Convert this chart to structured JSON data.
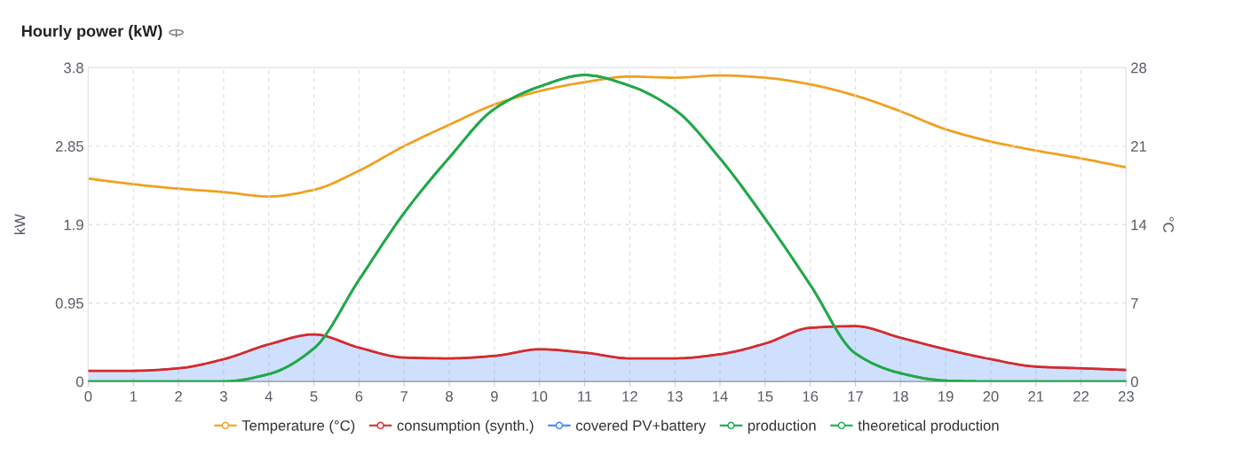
{
  "chart_data": {
    "type": "line",
    "title": "Hourly power (kW)",
    "ylabel": "kW",
    "y2label": "°C",
    "x": [
      0,
      1,
      2,
      3,
      4,
      5,
      6,
      7,
      8,
      9,
      10,
      11,
      12,
      13,
      14,
      15,
      16,
      17,
      18,
      19,
      20,
      21,
      22,
      23
    ],
    "xlim": [
      0,
      23
    ],
    "xticks": [
      0,
      1,
      2,
      3,
      4,
      5,
      6,
      7,
      8,
      9,
      10,
      11,
      12,
      13,
      14,
      15,
      16,
      17,
      18,
      19,
      20,
      21,
      22,
      23
    ],
    "ylim": [
      0,
      3.8
    ],
    "yticks": [
      0,
      0.95,
      1.9,
      2.85,
      3.8
    ],
    "y2lim": [
      0,
      28
    ],
    "y2ticks": [
      0,
      7,
      14,
      21,
      28
    ],
    "grid": true,
    "legend": "bottom",
    "series": [
      {
        "name": "Temperature (°C)",
        "color": "#f0a020",
        "axis": "y2",
        "values": [
          18.1,
          17.6,
          17.2,
          16.9,
          16.5,
          17.1,
          18.8,
          21.0,
          22.9,
          24.7,
          25.9,
          26.7,
          27.2,
          27.1,
          27.3,
          27.1,
          26.5,
          25.5,
          24.1,
          22.5,
          21.4,
          20.6,
          19.9,
          19.1
        ]
      },
      {
        "name": "consumption (synth.)",
        "color": "#d62b2b",
        "values": [
          0.13,
          0.13,
          0.16,
          0.27,
          0.45,
          0.57,
          0.41,
          0.29,
          0.28,
          0.31,
          0.39,
          0.35,
          0.28,
          0.28,
          0.33,
          0.46,
          0.65,
          0.67,
          0.53,
          0.39,
          0.27,
          0.18,
          0.16,
          0.14
        ]
      },
      {
        "name": "covered PV+battery",
        "color": "#3b82f6",
        "type": "area",
        "values": [
          0.13,
          0.13,
          0.16,
          0.27,
          0.45,
          0.57,
          0.41,
          0.29,
          0.28,
          0.31,
          0.39,
          0.35,
          0.28,
          0.28,
          0.33,
          0.46,
          0.65,
          0.67,
          0.53,
          0.39,
          0.27,
          0.18,
          0.16,
          0.14
        ]
      },
      {
        "name": "production",
        "color": "#16a34a",
        "values": [
          0,
          0,
          0,
          0,
          0.09,
          0.4,
          1.23,
          2.04,
          2.71,
          3.3,
          3.57,
          3.71,
          3.58,
          3.29,
          2.7,
          1.97,
          1.17,
          0.34,
          0.1,
          0.01,
          0,
          0,
          0,
          0
        ]
      },
      {
        "name": "theoretical production",
        "color": "#22a84a",
        "values": [
          0,
          0,
          0,
          0,
          0.09,
          0.4,
          1.23,
          2.04,
          2.71,
          3.3,
          3.57,
          3.71,
          3.58,
          3.29,
          2.7,
          1.97,
          1.17,
          0.34,
          0.1,
          0.01,
          0,
          0,
          0,
          0
        ]
      }
    ]
  }
}
